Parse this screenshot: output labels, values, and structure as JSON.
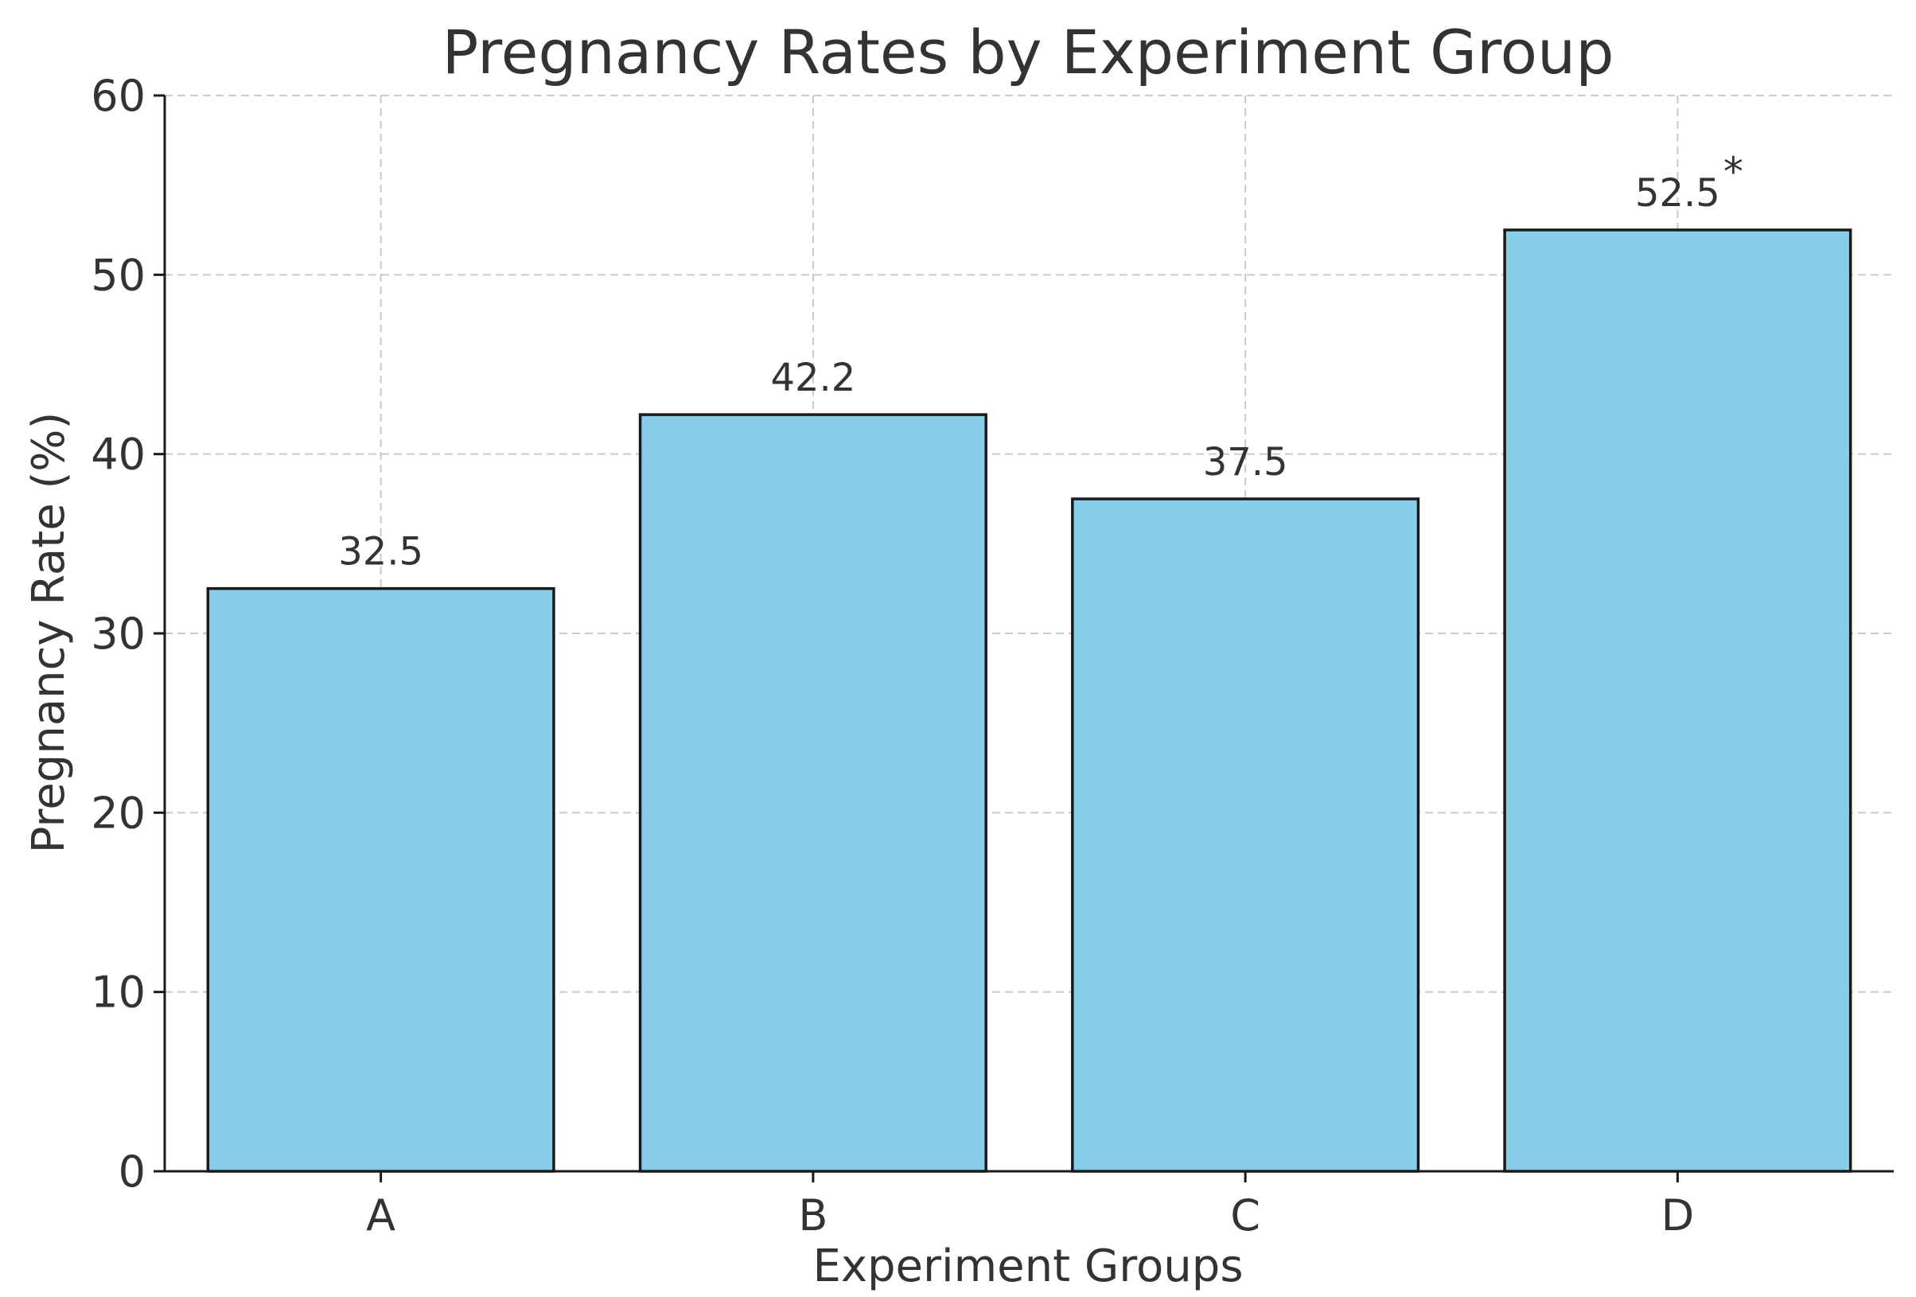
{
  "chart_data": {
    "type": "bar",
    "title": "Pregnancy Rates by Experiment Group",
    "xlabel": "Experiment Groups",
    "ylabel": "Pregnancy Rate (%)",
    "categories": [
      "A",
      "B",
      "C",
      "D"
    ],
    "values": [
      32.5,
      42.2,
      37.5,
      52.5
    ],
    "data_labels": [
      "32.5",
      "42.2",
      "37.5",
      "52.5"
    ],
    "annotations": [
      {
        "category": "D",
        "text": "*"
      }
    ],
    "ylim": [
      0,
      60
    ],
    "yticks": [
      0,
      10,
      20,
      30,
      40,
      50,
      60
    ],
    "ytick_labels": [
      "0",
      "10",
      "20",
      "30",
      "40",
      "50",
      "60"
    ],
    "grid": true,
    "colors": {
      "bar_fill": "#87ceeb",
      "bar_edge": "#1a1a1a",
      "grid": "#c9c9c9",
      "text": "#333333"
    }
  }
}
